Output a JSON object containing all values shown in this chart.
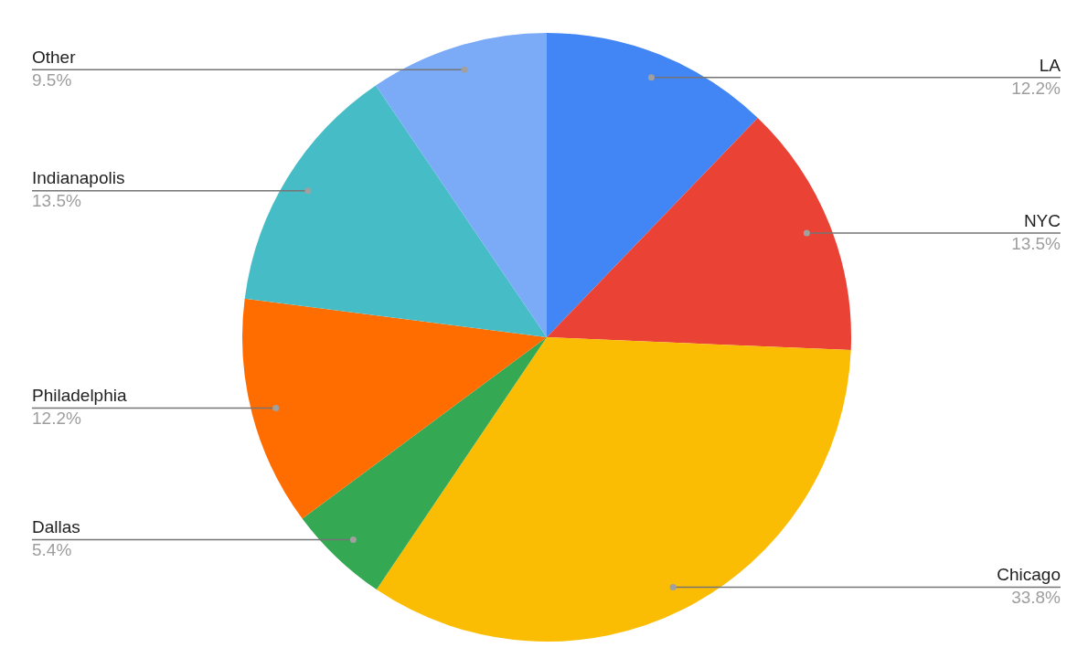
{
  "chart_data": {
    "type": "pie",
    "categories": [
      "LA",
      "NYC",
      "Chicago",
      "Dallas",
      "Philadelphia",
      "Indianapolis",
      "Other"
    ],
    "values": [
      12.2,
      13.5,
      33.8,
      5.4,
      12.2,
      13.5,
      9.5
    ],
    "value_labels": [
      "12.2%",
      "13.5%",
      "33.8%",
      "5.4%",
      "12.2%",
      "13.5%",
      "9.5%"
    ],
    "colors": [
      "#4285f4",
      "#ea4335",
      "#fbbc04",
      "#34a853",
      "#ff6d01",
      "#46bdc6",
      "#7baaf7"
    ],
    "legend": false
  }
}
